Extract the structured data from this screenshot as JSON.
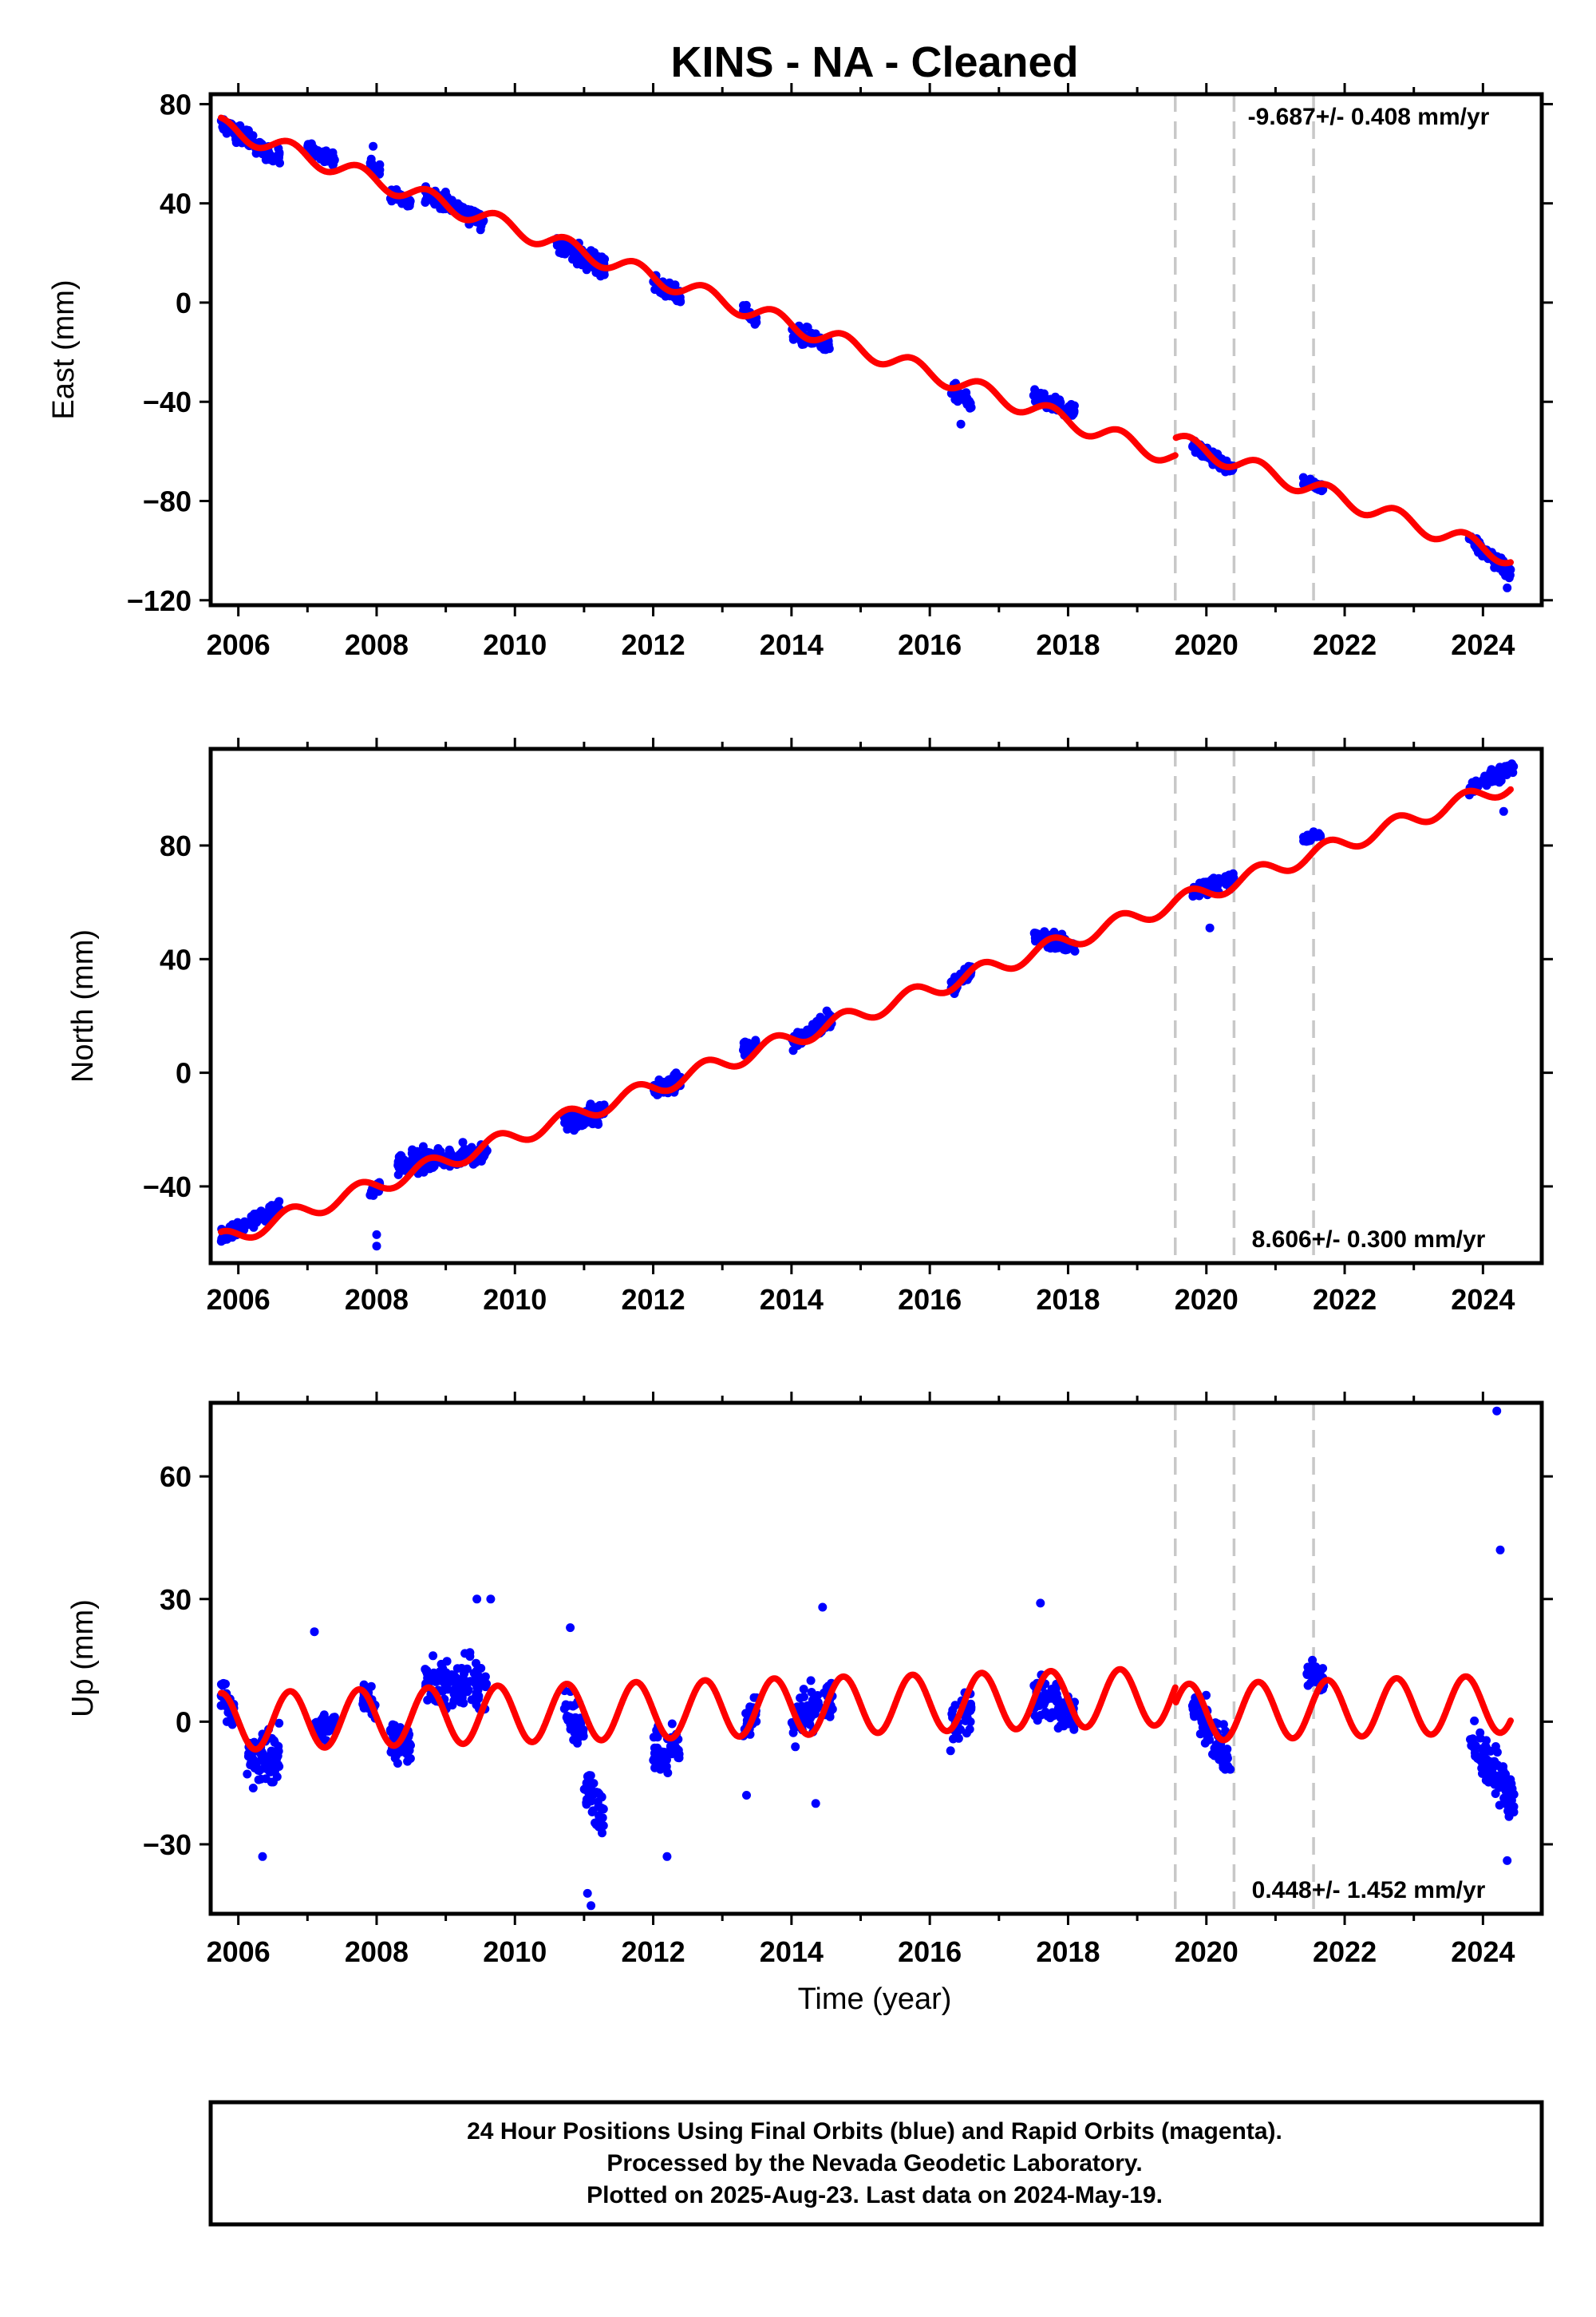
{
  "title": "KINS  - NA - Cleaned",
  "xlabel": "Time (year)",
  "footer": {
    "line1": "24 Hour Positions Using Final Orbits (blue) and Rapid Orbits (magenta).",
    "line2": "Processed by the Nevada Geodetic Laboratory.",
    "line3": "Plotted on 2025-Aug-23. Last data on 2024-May-19."
  },
  "colors": {
    "data_points": "#0000ff",
    "model_line": "#ff0000",
    "event_lines": "#c8c8c8",
    "frame": "#000000"
  },
  "chart_data": [
    {
      "type": "scatter",
      "component": "East",
      "ylabel": "East (mm)",
      "rate_label": "-9.687+/- 0.408 mm/yr",
      "rate_label_position": "top-right",
      "xlim": [
        2005.6,
        2024.85
      ],
      "ylim": [
        -122,
        84
      ],
      "yticks": [
        80,
        40,
        0,
        -40,
        -80,
        -120
      ],
      "ytick_labels": [
        "80",
        "40",
        "0",
        "−40",
        "−80",
        "−120"
      ],
      "xticks": [
        2006,
        2008,
        2010,
        2012,
        2014,
        2016,
        2018,
        2020,
        2022,
        2024
      ],
      "xtick_labels": [
        "2006",
        "2008",
        "2010",
        "2012",
        "2014",
        "2016",
        "2018",
        "2020",
        "2022",
        "2024"
      ],
      "event_lines_x": [
        2019.55,
        2020.4,
        2021.55
      ],
      "model": {
        "offset_at_2005_75": 71,
        "rate_mm_per_yr": -9.687,
        "seasonal_amplitude_mm": 3.5,
        "steps": [
          {
            "x": 2019.55,
            "dy": 7
          }
        ]
      },
      "data_segments": [
        {
          "x": [
            2005.75,
            2006.6
          ],
          "y": [
            72,
            58
          ],
          "scatter": 4
        },
        {
          "x": [
            2007.0,
            2007.4
          ],
          "y": [
            62,
            58
          ],
          "scatter": 3
        },
        {
          "x": [
            2007.9,
            2008.05
          ],
          "y": [
            56,
            52
          ],
          "scatter": 4
        },
        {
          "x": [
            2008.2,
            2008.5
          ],
          "y": [
            44,
            40
          ],
          "scatter": 3
        },
        {
          "x": [
            2008.7,
            2009.55
          ],
          "y": [
            44,
            33
          ],
          "scatter": 4
        },
        {
          "x": [
            2010.6,
            2011.3
          ],
          "y": [
            24,
            14
          ],
          "scatter": 5
        },
        {
          "x": [
            2012.0,
            2012.4
          ],
          "y": [
            8,
            2
          ],
          "scatter": 4
        },
        {
          "x": [
            2013.3,
            2013.5
          ],
          "y": [
            -3,
            -8
          ],
          "scatter": 3
        },
        {
          "x": [
            2014.0,
            2014.55
          ],
          "y": [
            -12,
            -17
          ],
          "scatter": 4
        },
        {
          "x": [
            2016.3,
            2016.6
          ],
          "y": [
            -35,
            -40
          ],
          "scatter": 4
        },
        {
          "x": [
            2017.5,
            2018.1
          ],
          "y": [
            -38,
            -44
          ],
          "scatter": 3
        },
        {
          "x": [
            2019.8,
            2020.4
          ],
          "y": [
            -57,
            -68
          ],
          "scatter": 3
        },
        {
          "x": [
            2021.4,
            2021.7
          ],
          "y": [
            -72,
            -75
          ],
          "scatter": 2
        },
        {
          "x": [
            2023.8,
            2024.4
          ],
          "y": [
            -95,
            -109
          ],
          "scatter": 4
        }
      ],
      "outliers": [
        {
          "x": 2007.95,
          "y": 63
        },
        {
          "x": 2024.35,
          "y": -115
        },
        {
          "x": 2016.45,
          "y": -49
        }
      ]
    },
    {
      "type": "scatter",
      "component": "North",
      "ylabel": "North (mm)",
      "rate_label": "8.606+/- 0.300 mm/yr",
      "rate_label_position": "bottom-right",
      "xlim": [
        2005.6,
        2024.85
      ],
      "ylim": [
        -67,
        114
      ],
      "yticks": [
        80,
        40,
        0,
        -40
      ],
      "ytick_labels": [
        "80",
        "40",
        "0",
        "−40"
      ],
      "xticks": [
        2006,
        2008,
        2010,
        2012,
        2014,
        2016,
        2018,
        2020,
        2022,
        2024
      ],
      "xtick_labels": [
        "2006",
        "2008",
        "2010",
        "2012",
        "2014",
        "2016",
        "2018",
        "2020",
        "2022",
        "2024"
      ],
      "event_lines_x": [
        2019.55,
        2020.4,
        2021.55
      ],
      "model": {
        "offset_at_2005_75": -59,
        "rate_mm_per_yr": 8.606,
        "seasonal_amplitude_mm": 3,
        "steps": [
          {
            "x": 2019.55,
            "dy": 0
          }
        ]
      },
      "data_segments": [
        {
          "x": [
            2005.75,
            2006.6
          ],
          "y": [
            -58,
            -47
          ],
          "scatter": 3
        },
        {
          "x": [
            2007.9,
            2008.05
          ],
          "y": [
            -43,
            -40
          ],
          "scatter": 3
        },
        {
          "x": [
            2008.3,
            2009.6
          ],
          "y": [
            -32,
            -28
          ],
          "scatter": 4
        },
        {
          "x": [
            2010.7,
            2011.3
          ],
          "y": [
            -17,
            -14
          ],
          "scatter": 4
        },
        {
          "x": [
            2012.0,
            2012.4
          ],
          "y": [
            -6,
            -2
          ],
          "scatter": 4
        },
        {
          "x": [
            2013.3,
            2013.5
          ],
          "y": [
            8,
            11
          ],
          "scatter": 3
        },
        {
          "x": [
            2014.0,
            2014.6
          ],
          "y": [
            10,
            19
          ],
          "scatter": 4
        },
        {
          "x": [
            2016.3,
            2016.6
          ],
          "y": [
            30,
            36
          ],
          "scatter": 3
        },
        {
          "x": [
            2017.5,
            2018.1
          ],
          "y": [
            48,
            44
          ],
          "scatter": 3
        },
        {
          "x": [
            2019.8,
            2020.4
          ],
          "y": [
            64,
            68
          ],
          "scatter": 3
        },
        {
          "x": [
            2021.4,
            2021.65
          ],
          "y": [
            82,
            84
          ],
          "scatter": 2
        },
        {
          "x": [
            2023.8,
            2024.45
          ],
          "y": [
            100,
            108
          ],
          "scatter": 3
        }
      ],
      "outliers": [
        {
          "x": 2008.0,
          "y": -57
        },
        {
          "x": 2008.0,
          "y": -61
        },
        {
          "x": 2020.05,
          "y": 51
        },
        {
          "x": 2024.3,
          "y": 92
        }
      ]
    },
    {
      "type": "scatter",
      "component": "Up",
      "ylabel": "Up (mm)",
      "rate_label": "0.448+/- 1.452 mm/yr",
      "rate_label_position": "bottom-right",
      "xlim": [
        2005.6,
        2024.85
      ],
      "ylim": [
        -47,
        78
      ],
      "yticks": [
        60,
        30,
        0,
        -30
      ],
      "ytick_labels": [
        "60",
        "30",
        "0",
        "−30"
      ],
      "xticks": [
        2006,
        2008,
        2010,
        2012,
        2014,
        2016,
        2018,
        2020,
        2022,
        2024
      ],
      "xtick_labels": [
        "2006",
        "2008",
        "2010",
        "2012",
        "2014",
        "2016",
        "2018",
        "2020",
        "2022",
        "2024"
      ],
      "event_lines_x": [
        2019.55,
        2020.4,
        2021.55
      ],
      "model": {
        "offset_at_2005_75": 0,
        "rate_mm_per_yr": 0.448,
        "seasonal_amplitude_mm": 7,
        "steps": [
          {
            "x": 2019.55,
            "dy": -4
          }
        ]
      },
      "data_segments": [
        {
          "x": [
            2005.75,
            2005.95
          ],
          "y": [
            8,
            0
          ],
          "scatter": 5
        },
        {
          "x": [
            2006.1,
            2006.6
          ],
          "y": [
            -10,
            -8
          ],
          "scatter": 8
        },
        {
          "x": [
            2007.1,
            2007.4
          ],
          "y": [
            -2,
            0
          ],
          "scatter": 4
        },
        {
          "x": [
            2007.8,
            2008.0
          ],
          "y": [
            6,
            4
          ],
          "scatter": 5
        },
        {
          "x": [
            2008.2,
            2008.5
          ],
          "y": [
            -4,
            -6
          ],
          "scatter": 5
        },
        {
          "x": [
            2008.7,
            2009.6
          ],
          "y": [
            10,
            8
          ],
          "scatter": 7
        },
        {
          "x": [
            2010.7,
            2011.0
          ],
          "y": [
            4,
            -2
          ],
          "scatter": 6
        },
        {
          "x": [
            2011.0,
            2011.3
          ],
          "y": [
            -14,
            -24
          ],
          "scatter": 8
        },
        {
          "x": [
            2012.0,
            2012.4
          ],
          "y": [
            -8,
            -6
          ],
          "scatter": 7
        },
        {
          "x": [
            2013.3,
            2013.5
          ],
          "y": [
            -2,
            2
          ],
          "scatter": 5
        },
        {
          "x": [
            2014.0,
            2014.6
          ],
          "y": [
            0,
            6
          ],
          "scatter": 7
        },
        {
          "x": [
            2016.3,
            2016.6
          ],
          "y": [
            -2,
            4
          ],
          "scatter": 6
        },
        {
          "x": [
            2017.5,
            2018.1
          ],
          "y": [
            6,
            2
          ],
          "scatter": 6
        },
        {
          "x": [
            2019.8,
            2020.35
          ],
          "y": [
            4,
            -10
          ],
          "scatter": 6
        },
        {
          "x": [
            2021.45,
            2021.7
          ],
          "y": [
            12,
            10
          ],
          "scatter": 4
        },
        {
          "x": [
            2023.8,
            2024.45
          ],
          "y": [
            -4,
            -18
          ],
          "scatter": 7
        }
      ],
      "outliers": [
        {
          "x": 2024.2,
          "y": 76
        },
        {
          "x": 2024.25,
          "y": 42
        },
        {
          "x": 2009.65,
          "y": 30
        },
        {
          "x": 2009.45,
          "y": 30
        },
        {
          "x": 2017.6,
          "y": 29
        },
        {
          "x": 2011.1,
          "y": -45
        },
        {
          "x": 2011.05,
          "y": -42
        },
        {
          "x": 2012.2,
          "y": -33
        },
        {
          "x": 2024.35,
          "y": -34
        },
        {
          "x": 2006.35,
          "y": -33
        },
        {
          "x": 2010.8,
          "y": 23
        },
        {
          "x": 2014.45,
          "y": 28
        },
        {
          "x": 2007.1,
          "y": 22
        },
        {
          "x": 2013.35,
          "y": -18
        },
        {
          "x": 2014.35,
          "y": -20
        }
      ]
    }
  ]
}
